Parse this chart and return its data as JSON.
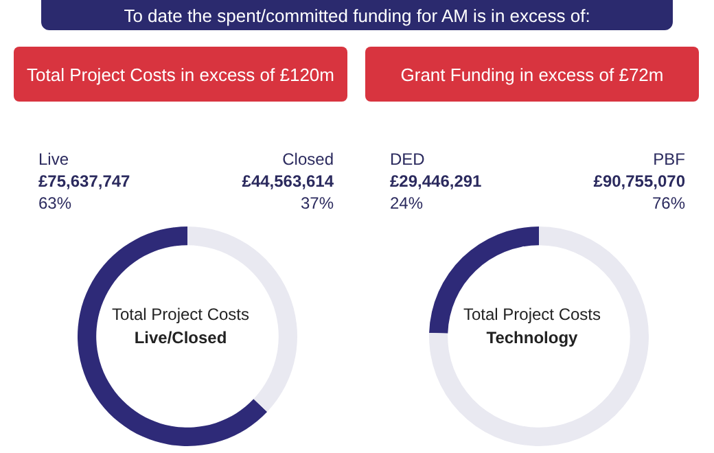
{
  "chart_data": [
    {
      "type": "donut",
      "title": "Total Project Costs",
      "subtitle": "Live/Closed",
      "categories": [
        "Live",
        "Closed"
      ],
      "values": [
        75637747,
        44563614
      ],
      "colors": [
        "#2e2a78",
        "#e9e9f1"
      ],
      "value_labels": [
        "£75,637,747",
        "£44,563,614"
      ],
      "annotations": [
        "To date the spent/committed funding for AM is in excess of:",
        "Total Project Costs in excess of £120m",
        {
          "text": "63%",
          "x": "Live"
        },
        {
          "text": "37%",
          "x": "Closed"
        }
      ]
    },
    {
      "type": "donut",
      "title": "Total Project Costs",
      "subtitle": "Technology",
      "categories": [
        "DED",
        "PBF"
      ],
      "values": [
        29446291,
        90755070
      ],
      "colors": [
        "#2e2a78",
        "#e9e9f1"
      ],
      "value_labels": [
        "£29,446,291",
        "£90,755,070"
      ],
      "annotations": [
        "Grant Funding in excess of £72m",
        {
          "text": "24%",
          "x": "DED"
        },
        {
          "text": "76%",
          "x": "PBF"
        }
      ]
    }
  ]
}
